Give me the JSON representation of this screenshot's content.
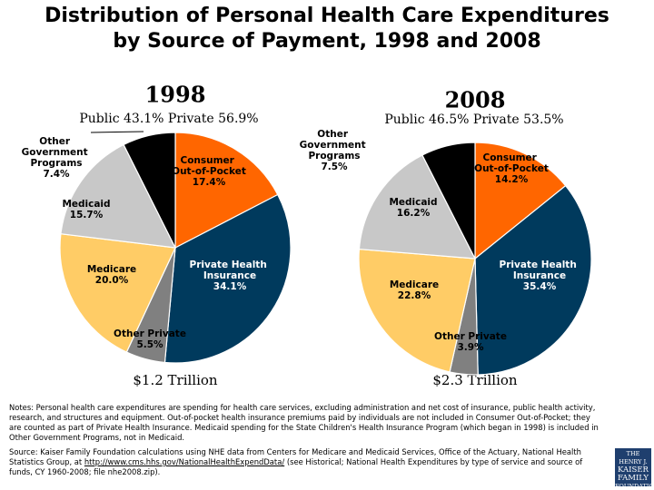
{
  "title": "Distribution of Personal Health Care Expenditures by Source of Payment, 1998 and 2008",
  "chart_data": [
    {
      "type": "pie",
      "title": "1998",
      "subtitle": "Public 43.1% Private 56.9%",
      "caption": "$1.2 Trillion",
      "categories": [
        "Consumer Out-of-Pocket",
        "Private Health Insurance",
        "Other Private",
        "Medicare",
        "Medicaid",
        "Other Government Programs"
      ],
      "values": [
        17.4,
        34.1,
        5.5,
        20.0,
        15.7,
        7.4
      ],
      "value_labels": [
        "17.4%",
        "34.1%",
        "5.5%",
        "20.0%",
        "15.7%",
        "7.4%"
      ],
      "colors": [
        "#ff6600",
        "#003a5d",
        "#808080",
        "#ffcc66",
        "#c8c8c8",
        "#000000"
      ]
    },
    {
      "type": "pie",
      "title": "2008",
      "subtitle": "Public 46.5% Private 53.5%",
      "caption": "$2.3 Trillion",
      "categories": [
        "Consumer Out-of-Pocket",
        "Private Health Insurance",
        "Other Private",
        "Medicare",
        "Medicaid",
        "Other Government Programs"
      ],
      "values": [
        14.2,
        35.4,
        3.9,
        22.8,
        16.2,
        7.5
      ],
      "value_labels": [
        "14.2%",
        "35.4%",
        "3.9%",
        "22.8%",
        "16.2%",
        "7.5%"
      ],
      "colors": [
        "#ff6600",
        "#003a5d",
        "#808080",
        "#ffcc66",
        "#c8c8c8",
        "#000000"
      ]
    }
  ],
  "notes": "Notes: Personal health care expenditures are spending for health care services, excluding administration and net cost of insurance, public health activity, research, and structures and equipment. Out-of-pocket health insurance premiums paid by individuals are not included in Consumer Out-of-Pocket; they are counted as part of Private Health Insurance. Medicaid spending for the State Children's Health Insurance Program (which began in 1998) is included in Other Government Programs, not in Medicaid.",
  "source": {
    "before": "Source: Kaiser Family Foundation calculations using NHE data from Centers for Medicare and Medicaid Services, Office of the Actuary, National Health Statistics Group, at ",
    "link": "http://www.cms.hhs.gov/NationalHealthExpendData/",
    "after": " (see Historical; National Health Expenditures by type of service and source of funds, CY 1960-2008; file nhe2008.zip)."
  },
  "logo": [
    "THE HENRY J.",
    "KAISER",
    "FAMILY",
    "FOUNDATION"
  ]
}
